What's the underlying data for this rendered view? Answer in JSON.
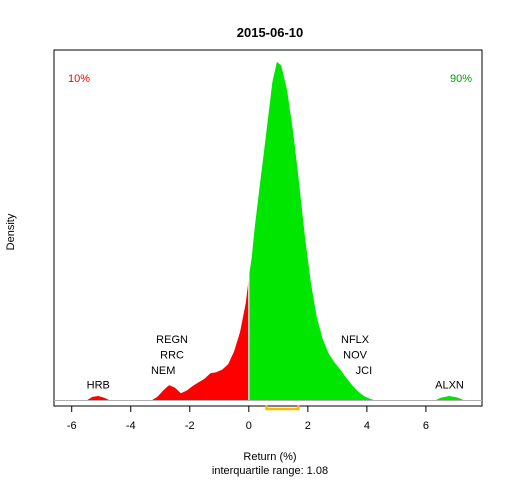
{
  "chart_data": {
    "type": "area",
    "title": "2015-06-10",
    "xlabel": "Return (%)",
    "ylabel": "Density",
    "subtitle": "interquartile range: 1.08",
    "xlim": [
      -6.6,
      7.9
    ],
    "ylim": [
      -0.006,
      0.385
    ],
    "xticks": [
      -6,
      -4,
      -2,
      0,
      2,
      4,
      6
    ],
    "split_at": 0,
    "colors": {
      "negative": "#ff0000",
      "positive": "#00e600",
      "iqr": "#ffb800",
      "axis": "#000000",
      "pct_low": "#ff0000",
      "pct_high": "#00a000"
    },
    "percentiles": {
      "low_label": "10%",
      "high_label": "90%"
    },
    "iqr_range": [
      0.6,
      1.68
    ],
    "density": [
      {
        "x": -5.5,
        "y": 0
      },
      {
        "x": -5.3,
        "y": 0.004
      },
      {
        "x": -5.1,
        "y": 0.005
      },
      {
        "x": -4.9,
        "y": 0.003
      },
      {
        "x": -4.7,
        "y": 0
      },
      {
        "x": -3.3,
        "y": 0
      },
      {
        "x": -3.1,
        "y": 0.004
      },
      {
        "x": -2.9,
        "y": 0.011
      },
      {
        "x": -2.7,
        "y": 0.017
      },
      {
        "x": -2.5,
        "y": 0.014
      },
      {
        "x": -2.3,
        "y": 0.008
      },
      {
        "x": -2.1,
        "y": 0.011
      },
      {
        "x": -1.9,
        "y": 0.016
      },
      {
        "x": -1.7,
        "y": 0.02
      },
      {
        "x": -1.5,
        "y": 0.024
      },
      {
        "x": -1.3,
        "y": 0.03
      },
      {
        "x": -1.1,
        "y": 0.031
      },
      {
        "x": -0.9,
        "y": 0.034
      },
      {
        "x": -0.7,
        "y": 0.04
      },
      {
        "x": -0.5,
        "y": 0.054
      },
      {
        "x": -0.3,
        "y": 0.075
      },
      {
        "x": -0.1,
        "y": 0.108
      },
      {
        "x": 0.0,
        "y": 0.135
      },
      {
        "x": 0.1,
        "y": 0.158
      },
      {
        "x": 0.2,
        "y": 0.19
      },
      {
        "x": 0.35,
        "y": 0.23
      },
      {
        "x": 0.5,
        "y": 0.27
      },
      {
        "x": 0.65,
        "y": 0.31
      },
      {
        "x": 0.8,
        "y": 0.35
      },
      {
        "x": 0.95,
        "y": 0.372
      },
      {
        "x": 1.1,
        "y": 0.368
      },
      {
        "x": 1.3,
        "y": 0.34
      },
      {
        "x": 1.5,
        "y": 0.295
      },
      {
        "x": 1.7,
        "y": 0.24
      },
      {
        "x": 1.9,
        "y": 0.18
      },
      {
        "x": 2.1,
        "y": 0.13
      },
      {
        "x": 2.3,
        "y": 0.092
      },
      {
        "x": 2.5,
        "y": 0.068
      },
      {
        "x": 2.7,
        "y": 0.052
      },
      {
        "x": 2.9,
        "y": 0.042
      },
      {
        "x": 3.1,
        "y": 0.034
      },
      {
        "x": 3.3,
        "y": 0.025
      },
      {
        "x": 3.5,
        "y": 0.017
      },
      {
        "x": 3.7,
        "y": 0.01
      },
      {
        "x": 3.9,
        "y": 0.005
      },
      {
        "x": 4.1,
        "y": 0.002
      },
      {
        "x": 4.3,
        "y": 0
      },
      {
        "x": 6.3,
        "y": 0
      },
      {
        "x": 6.5,
        "y": 0.003
      },
      {
        "x": 6.8,
        "y": 0.005
      },
      {
        "x": 7.1,
        "y": 0.003
      },
      {
        "x": 7.3,
        "y": 0
      }
    ],
    "annotations": [
      {
        "text": "HRB",
        "x": -5.1,
        "y": 0.013
      },
      {
        "text": "REGN",
        "x": -2.6,
        "y": 0.063
      },
      {
        "text": "RRC",
        "x": -2.6,
        "y": 0.046
      },
      {
        "text": "NEM",
        "x": -2.9,
        "y": 0.029
      },
      {
        "text": "NFLX",
        "x": 3.6,
        "y": 0.063
      },
      {
        "text": "NOV",
        "x": 3.6,
        "y": 0.046
      },
      {
        "text": "JCI",
        "x": 3.9,
        "y": 0.029
      },
      {
        "text": "ALXN",
        "x": 6.8,
        "y": 0.013
      }
    ]
  }
}
